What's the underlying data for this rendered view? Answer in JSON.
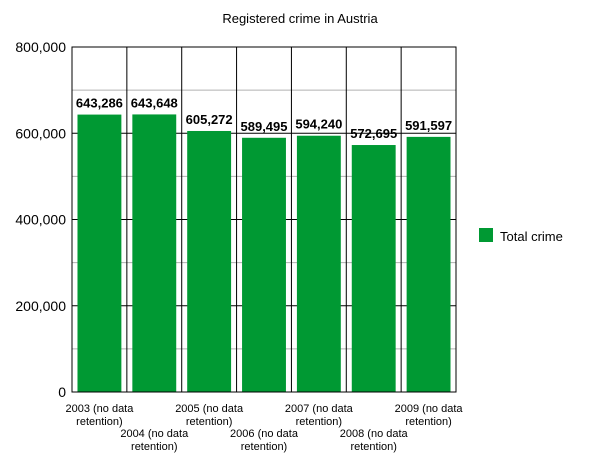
{
  "chart_data": {
    "type": "bar",
    "title": "Registered crime in Austria",
    "xlabel": "",
    "ylabel": "",
    "categories": [
      [
        "2003 (no data",
        "retention)"
      ],
      [
        "2004 (no data",
        "retention)"
      ],
      [
        "2005 (no data",
        "retention)"
      ],
      [
        "2006 (no data",
        "retention)"
      ],
      [
        "2007 (no data",
        "retention)"
      ],
      [
        "2008 (no data",
        "retention)"
      ],
      [
        "2009 (no data",
        "retention)"
      ]
    ],
    "series": [
      {
        "name": "Total crime",
        "color": "#009933",
        "values": [
          643286,
          643648,
          605272,
          589495,
          594240,
          572695,
          591597
        ],
        "labels": [
          "643,286",
          "643,648",
          "605,272",
          "589,495",
          "594,240",
          "572,695",
          "591,597"
        ]
      }
    ],
    "ylim": [
      0,
      800000
    ],
    "yticks": [
      0,
      200000,
      400000,
      600000,
      800000
    ],
    "ytick_labels": [
      "0",
      "200,000",
      "400,000",
      "600,000",
      "800,000"
    ],
    "grid": true,
    "legend_position": "right"
  }
}
